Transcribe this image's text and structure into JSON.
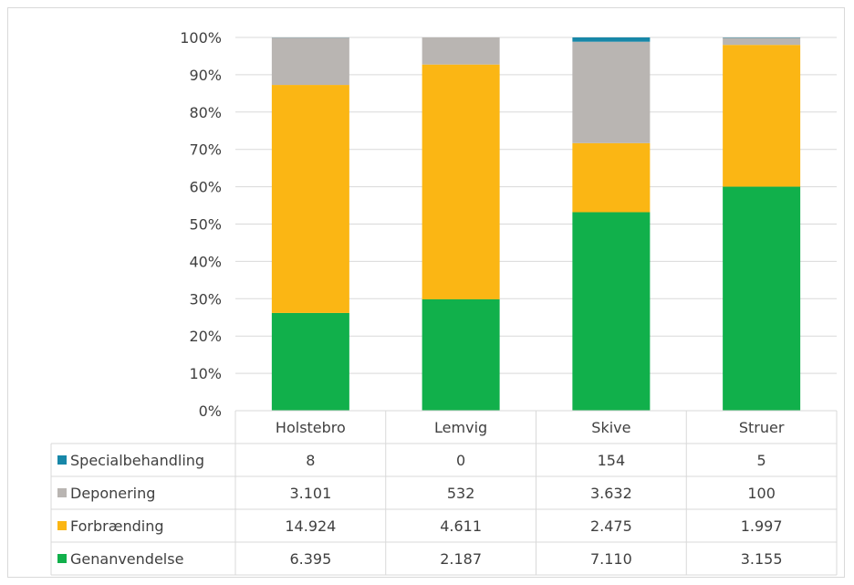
{
  "chart_data": {
    "type": "bar",
    "stacked": "percent",
    "categories": [
      "Holstebro",
      "Lemvig",
      "Skive",
      "Struer"
    ],
    "series": [
      {
        "name": "Genanvendelse",
        "color": "#11b04b",
        "values": [
          6395,
          2187,
          7110,
          3155
        ],
        "labels": [
          "6.395",
          "2.187",
          "7.110",
          "3.155"
        ]
      },
      {
        "name": "Forbrænding",
        "color": "#fbb614",
        "values": [
          14924,
          4611,
          2475,
          1997
        ],
        "labels": [
          "14.924",
          "4.611",
          "2.475",
          "1.997"
        ]
      },
      {
        "name": "Deponering",
        "color": "#b9b5b2",
        "values": [
          3101,
          532,
          3632,
          100
        ],
        "labels": [
          "3.101",
          "532",
          "3.632",
          "100"
        ]
      },
      {
        "name": "Specialbehandling",
        "color": "#1787a8",
        "values": [
          8,
          0,
          154,
          5
        ],
        "labels": [
          "8",
          "0",
          "154",
          "5"
        ]
      }
    ],
    "y_ticks": [
      "0%",
      "10%",
      "20%",
      "30%",
      "40%",
      "50%",
      "60%",
      "70%",
      "80%",
      "90%",
      "100%"
    ],
    "ylim": [
      0,
      100
    ],
    "grid": true,
    "legend": "data-table",
    "table_row_order": [
      "Specialbehandling",
      "Deponering",
      "Forbrænding",
      "Genanvendelse"
    ]
  }
}
